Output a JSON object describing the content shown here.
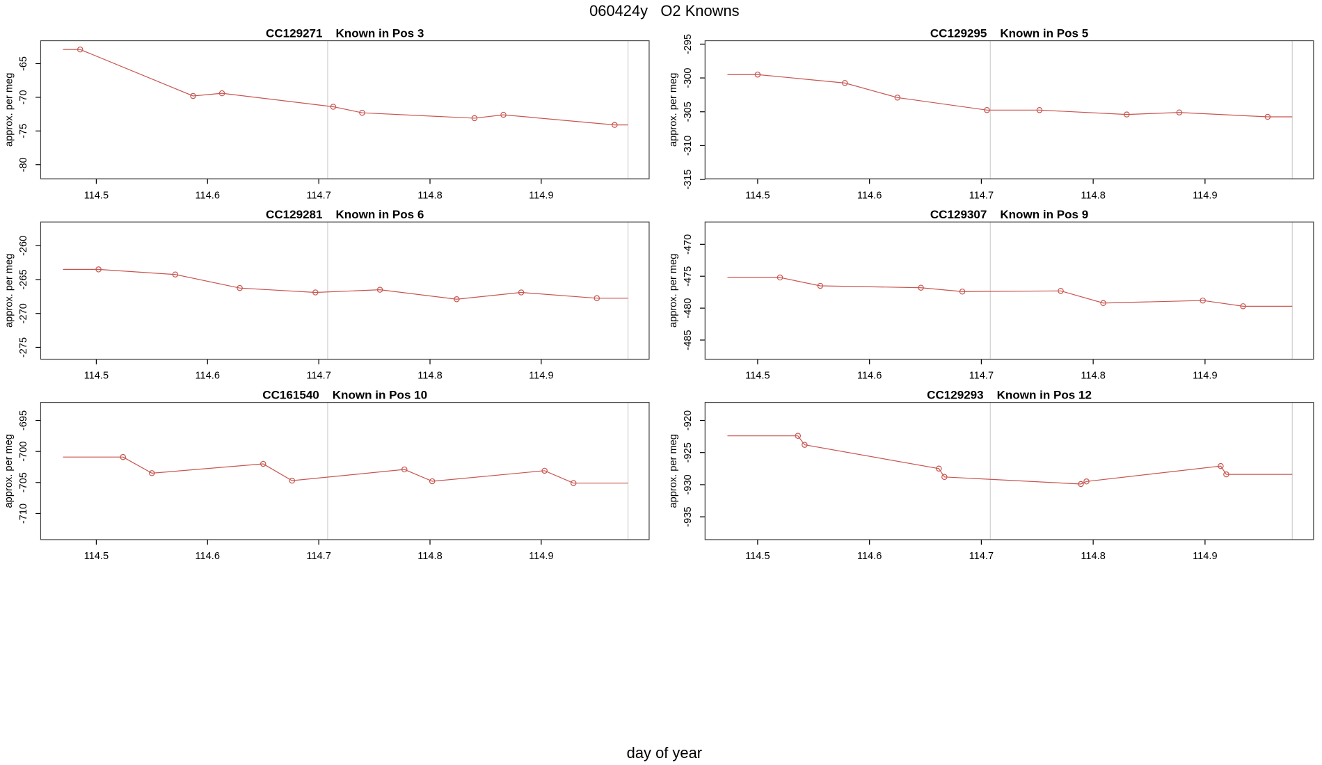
{
  "title": "060424y   O2 Knowns",
  "xlabel": "day of year",
  "chart_data": [
    {
      "type": "line",
      "title": "CC129271    Known in Pos 3",
      "ylabel": "approx. per meg",
      "color": "#c8554f",
      "x": [
        114.4855,
        114.587,
        114.613,
        114.713,
        114.739,
        114.84,
        114.866,
        114.966
      ],
      "values": [
        -62.9,
        -69.8,
        -69.4,
        -71.4,
        -72.3,
        -73.1,
        -72.6,
        -74.1
      ],
      "xspan": [
        114.47,
        114.978
      ],
      "vlines": [
        114.708,
        114.978
      ],
      "xlim": [
        114.45,
        114.997
      ],
      "ylim": [
        -82.1,
        -61.6
      ],
      "xticks": [
        114.5,
        114.6,
        114.7,
        114.8,
        114.9
      ],
      "yticks": [
        -80,
        -75,
        -70,
        -65
      ]
    },
    {
      "type": "line",
      "title": "CC129295    Known in Pos 5",
      "ylabel": "approx. per meg",
      "color": "#c8554f",
      "x": [
        114.5,
        114.578,
        114.625,
        114.705,
        114.752,
        114.83,
        114.877,
        114.956
      ],
      "values": [
        -299.5,
        -300.75,
        -302.9,
        -304.75,
        -304.75,
        -305.4,
        -305.1,
        -305.75
      ],
      "xspan": [
        114.473,
        114.978
      ],
      "vlines": [
        114.708,
        114.978
      ],
      "xlim": [
        114.453,
        114.997
      ],
      "ylim": [
        -314.9,
        -294.5
      ],
      "xticks": [
        114.5,
        114.6,
        114.7,
        114.8,
        114.9
      ],
      "yticks": [
        -315,
        -310,
        -305,
        -300,
        -295
      ]
    },
    {
      "type": "line",
      "title": "CC129281    Known in Pos 6",
      "ylabel": "approx. per meg",
      "color": "#c8554f",
      "x": [
        114.502,
        114.571,
        114.629,
        114.697,
        114.755,
        114.824,
        114.882,
        114.95
      ],
      "values": [
        -263.5,
        -264.25,
        -266.25,
        -266.9,
        -266.5,
        -267.9,
        -266.9,
        -267.75
      ],
      "xspan": [
        114.47,
        114.978
      ],
      "vlines": [
        114.708,
        114.978
      ],
      "xlim": [
        114.45,
        114.997
      ],
      "ylim": [
        -276.75,
        -256.5
      ],
      "xticks": [
        114.5,
        114.6,
        114.7,
        114.8,
        114.9
      ],
      "yticks": [
        -275,
        -270,
        -265,
        -260
      ]
    },
    {
      "type": "line",
      "title": "CC129307    Known in Pos 9",
      "ylabel": "approx. per meg",
      "color": "#c8554f",
      "x": [
        114.52,
        114.556,
        114.646,
        114.683,
        114.771,
        114.809,
        114.898,
        114.934
      ],
      "values": [
        -475.2,
        -476.5,
        -476.8,
        -477.4,
        -477.3,
        -479.2,
        -478.8,
        -479.7
      ],
      "xspan": [
        114.473,
        114.978
      ],
      "vlines": [
        114.708,
        114.978
      ],
      "xlim": [
        114.453,
        114.997
      ],
      "ylim": [
        -488.0,
        -466.5
      ],
      "xticks": [
        114.5,
        114.6,
        114.7,
        114.8,
        114.9
      ],
      "yticks": [
        -485,
        -480,
        -475,
        -470
      ]
    },
    {
      "type": "line",
      "title": "CC161540    Known in Pos 10",
      "ylabel": "approx. per meg",
      "color": "#c8554f",
      "x": [
        114.524,
        114.55,
        114.65,
        114.676,
        114.777,
        114.802,
        114.903,
        114.929
      ],
      "values": [
        -700.9,
        -703.5,
        -702.0,
        -704.7,
        -702.9,
        -704.8,
        -703.1,
        -705.1
      ],
      "xspan": [
        114.47,
        114.978
      ],
      "vlines": [
        114.708,
        114.978
      ],
      "xlim": [
        114.45,
        114.997
      ],
      "ylim": [
        -714.2,
        -692.1
      ],
      "xticks": [
        114.5,
        114.6,
        114.7,
        114.8,
        114.9
      ],
      "yticks": [
        -710,
        -705,
        -700,
        -695
      ]
    },
    {
      "type": "line",
      "title": "CC129293    Known in Pos 12",
      "ylabel": "approx. per meg",
      "color": "#c8554f",
      "x": [
        114.536,
        114.542,
        114.662,
        114.667,
        114.789,
        114.794,
        114.914,
        114.919
      ],
      "values": [
        -922.4,
        -923.8,
        -927.5,
        -928.8,
        -929.9,
        -929.5,
        -927.1,
        -928.4
      ],
      "xspan": [
        114.473,
        114.978
      ],
      "vlines": [
        114.708,
        114.978
      ],
      "xlim": [
        114.453,
        114.997
      ],
      "ylim": [
        -938.55,
        -917.2
      ],
      "xticks": [
        114.5,
        114.6,
        114.7,
        114.8,
        114.9
      ],
      "yticks": [
        -935,
        -930,
        -925,
        -920
      ]
    }
  ]
}
